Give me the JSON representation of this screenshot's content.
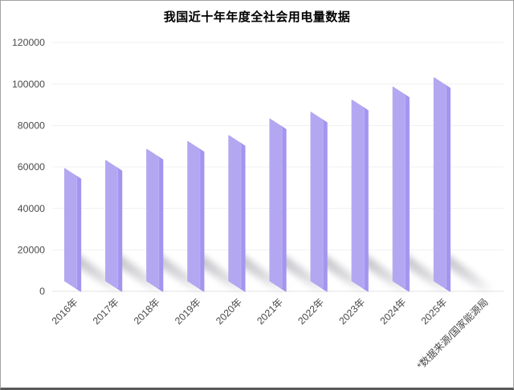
{
  "title": "我国近十年年度全社会用电量数据",
  "chart_data": {
    "type": "bar",
    "title": "我国近十年年度全社会用电量数据",
    "categories": [
      "2016年",
      "2017年",
      "2018年",
      "2019年",
      "2020年",
      "2021年",
      "2022年",
      "2023年",
      "2024年",
      "2025年"
    ],
    "values": [
      59198,
      63077,
      68449,
      72255,
      75110,
      83128,
      86372,
      92241,
      98521,
      103000
    ],
    "source_note": "*数据来源/国家能源局",
    "xlabel": "",
    "ylabel": "",
    "ylim": [
      0,
      120000
    ],
    "ytick_step": 20000,
    "ytick_labels": [
      "0",
      "20000",
      "40000",
      "60000",
      "80000",
      "100000",
      "120000"
    ],
    "grid": true,
    "legend": false,
    "bar_style": "slanted-3d-slab-with-cast-shadow"
  },
  "colors": {
    "bar_face": "#b4a7f1",
    "bar_side": "#a594ef",
    "bar_highlight": "#c6bcf7",
    "shadow": "#83838e",
    "grid_line": "#f0f0f0",
    "baseline": "#e3e3e3",
    "axis_text": "#4a4a4a",
    "title_text": "#3a3a3a",
    "background": "#ffffff",
    "border": "#a3a3a3"
  }
}
